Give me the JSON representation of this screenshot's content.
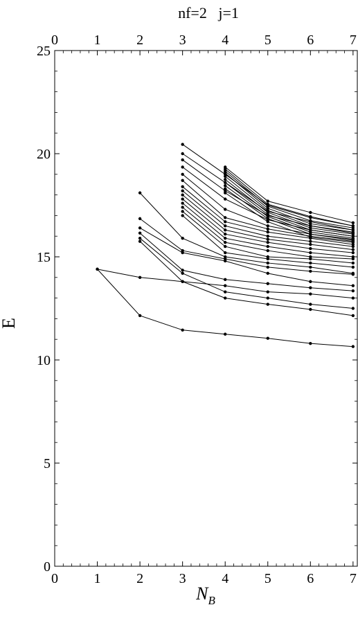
{
  "chart_data": {
    "type": "line",
    "title": "nf=2   j=1",
    "xlabel": "N",
    "xlabel_sub": "B",
    "ylabel": "E",
    "xlim": [
      0,
      7.1
    ],
    "ylim": [
      0,
      25
    ],
    "xticks": [
      0,
      1,
      2,
      3,
      4,
      5,
      6,
      7
    ],
    "yticks": [
      0,
      5,
      10,
      15,
      20,
      25
    ],
    "top_axis_ticks": [
      0,
      1,
      2,
      3,
      4,
      5,
      6,
      7
    ],
    "grid": false,
    "series": [
      {
        "x": [
          1,
          2,
          3,
          4,
          5,
          6,
          7
        ],
        "y": [
          14.4,
          12.15,
          11.45,
          11.25,
          11.05,
          10.8,
          10.65
        ]
      },
      {
        "x": [
          1,
          2,
          3,
          4,
          5,
          6,
          7
        ],
        "y": [
          14.4,
          14.0,
          13.8,
          13.6,
          13.3,
          13.2,
          13.0
        ]
      },
      {
        "x": [
          2,
          3,
          4,
          5,
          6,
          7
        ],
        "y": [
          15.75,
          13.8,
          13.0,
          12.7,
          12.45,
          12.15
        ]
      },
      {
        "x": [
          2,
          3,
          4,
          5,
          6,
          7
        ],
        "y": [
          15.9,
          14.2,
          13.3,
          13.0,
          12.7,
          12.5
        ]
      },
      {
        "x": [
          2,
          3,
          4,
          5,
          6,
          7
        ],
        "y": [
          16.15,
          14.35,
          13.9,
          13.7,
          13.5,
          13.35
        ]
      },
      {
        "x": [
          2,
          3,
          4,
          5,
          6,
          7
        ],
        "y": [
          16.4,
          15.2,
          14.8,
          14.2,
          13.8,
          13.6
        ]
      },
      {
        "x": [
          2,
          3,
          4,
          5,
          6,
          7
        ],
        "y": [
          16.85,
          15.3,
          14.9,
          14.5,
          14.3,
          14.15
        ]
      },
      {
        "x": [
          2,
          3,
          4,
          5,
          6,
          7
        ],
        "y": [
          18.1,
          15.9,
          15.0,
          14.7,
          14.5,
          14.2
        ]
      },
      {
        "x": [
          3,
          4,
          5,
          6,
          7
        ],
        "y": [
          17.0,
          15.2,
          14.9,
          14.7,
          14.5
        ]
      },
      {
        "x": [
          3,
          4,
          5,
          6,
          7
        ],
        "y": [
          17.2,
          15.5,
          15.0,
          14.9,
          14.7
        ]
      },
      {
        "x": [
          3,
          4,
          5,
          6,
          7
        ],
        "y": [
          17.4,
          15.7,
          15.3,
          15.0,
          14.9
        ]
      },
      {
        "x": [
          3,
          4,
          5,
          6,
          7
        ],
        "y": [
          17.6,
          15.9,
          15.5,
          15.2,
          15.0
        ]
      },
      {
        "x": [
          3,
          4,
          5,
          6,
          7
        ],
        "y": [
          17.8,
          16.1,
          15.7,
          15.4,
          15.2
        ]
      },
      {
        "x": [
          3,
          4,
          5,
          6,
          7
        ],
        "y": [
          18.0,
          16.3,
          15.85,
          15.6,
          15.35
        ]
      },
      {
        "x": [
          3,
          4,
          5,
          6,
          7
        ],
        "y": [
          18.2,
          16.5,
          16.0,
          15.75,
          15.5
        ]
      },
      {
        "x": [
          3,
          4,
          5,
          6,
          7
        ],
        "y": [
          18.4,
          16.7,
          16.2,
          15.9,
          15.6
        ]
      },
      {
        "x": [
          3,
          4,
          5,
          6,
          7
        ],
        "y": [
          18.7,
          16.9,
          16.35,
          16.0,
          15.75
        ]
      },
      {
        "x": [
          3,
          4,
          5,
          6,
          7
        ],
        "y": [
          19.0,
          17.3,
          16.5,
          16.1,
          15.85
        ]
      },
      {
        "x": [
          3,
          4,
          5,
          6,
          7
        ],
        "y": [
          19.35,
          17.8,
          16.8,
          16.3,
          16.0
        ]
      },
      {
        "x": [
          3,
          4,
          5,
          6,
          7
        ],
        "y": [
          19.7,
          18.2,
          17.0,
          16.5,
          16.15
        ]
      },
      {
        "x": [
          3,
          4,
          5,
          6,
          7
        ],
        "y": [
          20.0,
          18.6,
          17.2,
          16.7,
          16.3
        ]
      },
      {
        "x": [
          3,
          4,
          5,
          6,
          7
        ],
        "y": [
          20.45,
          19.0,
          17.5,
          16.9,
          16.5
        ]
      },
      {
        "x": [
          4,
          5,
          6,
          7
        ],
        "y": [
          18.1,
          16.7,
          15.95,
          15.7
        ]
      },
      {
        "x": [
          4,
          5,
          6,
          7
        ],
        "y": [
          18.3,
          16.85,
          16.1,
          15.8
        ]
      },
      {
        "x": [
          4,
          5,
          6,
          7
        ],
        "y": [
          18.45,
          16.95,
          16.2,
          15.9
        ]
      },
      {
        "x": [
          4,
          5,
          6,
          7
        ],
        "y": [
          18.6,
          17.05,
          16.3,
          16.0
        ]
      },
      {
        "x": [
          4,
          5,
          6,
          7
        ],
        "y": [
          18.75,
          17.15,
          16.4,
          16.1
        ]
      },
      {
        "x": [
          4,
          5,
          6,
          7
        ],
        "y": [
          18.9,
          17.25,
          16.5,
          16.2
        ]
      },
      {
        "x": [
          4,
          5,
          6,
          7
        ],
        "y": [
          19.05,
          17.35,
          16.6,
          16.3
        ]
      },
      {
        "x": [
          4,
          5,
          6,
          7
        ],
        "y": [
          19.15,
          17.45,
          16.75,
          16.4
        ]
      },
      {
        "x": [
          4,
          5,
          6,
          7
        ],
        "y": [
          19.25,
          17.55,
          16.95,
          16.5
        ]
      },
      {
        "x": [
          4,
          5,
          6,
          7
        ],
        "y": [
          19.35,
          17.7,
          17.15,
          16.65
        ]
      }
    ]
  }
}
